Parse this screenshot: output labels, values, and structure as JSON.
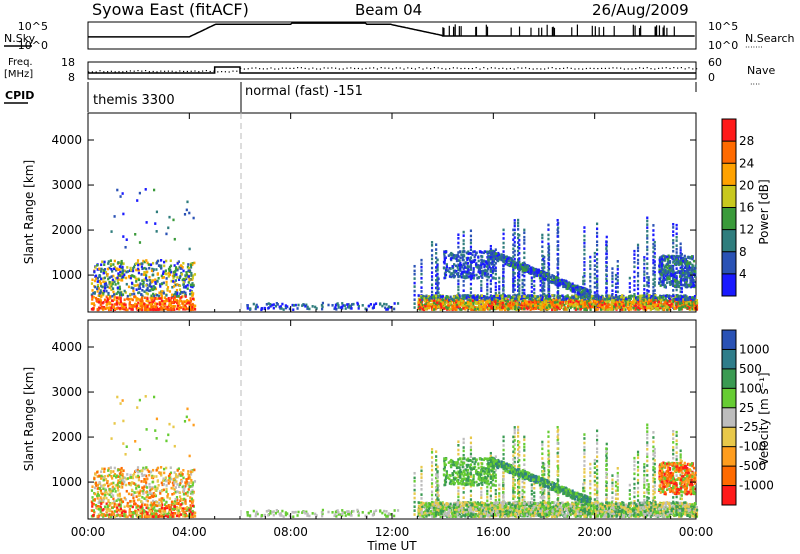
{
  "header": {
    "station": "Syowa East (fitACF)",
    "beam": "Beam 04",
    "date": "26/Aug/2009"
  },
  "top_panel_labels": {
    "nsky": "N.Sky",
    "nsearch": "N.Search",
    "nsearch_dots": "·······",
    "freq_line1": "Freq.",
    "freq_line2": "[MHz]",
    "cpid": "CPID",
    "nave": "Nave",
    "nave_dots": "····",
    "nsky_top": "10^5",
    "nsky_bottom": "10^0",
    "nsearch_top": "10^5",
    "nsearch_bottom": "10^0",
    "freq_top": "18",
    "freq_bottom": "8",
    "nave_top": "60",
    "nave_bottom": "0"
  },
  "cpid_segments": [
    {
      "start_hour": 0,
      "end_hour": 6,
      "label": "themis 3300"
    },
    {
      "start_hour": 6,
      "end_hour": 24,
      "label": "normal (fast) -151"
    }
  ],
  "colorbars": {
    "power": {
      "label": "Power [dB]",
      "ticks": [
        "4",
        "8",
        "12",
        "16",
        "20",
        "24",
        "28"
      ],
      "colors": [
        "#1a1aff",
        "#2a52b5",
        "#2f7d7d",
        "#3a9a3a",
        "#c8c81e",
        "#ffa200",
        "#ff6a00",
        "#ff1a1a"
      ]
    },
    "velocity": {
      "label": "Velocity [m s⁻¹]",
      "ticks": [
        "-1000",
        "-500",
        "-100",
        "-25",
        "25",
        "100",
        "500",
        "1000"
      ],
      "colors": [
        "#ff1a1a",
        "#ff6a00",
        "#ff9d1e",
        "#e8c84a",
        "#bdbdbd",
        "#66cc33",
        "#3a9a52",
        "#2f7d8a",
        "#2a52b5"
      ]
    }
  },
  "chart_data": [
    {
      "type": "heatmap",
      "panel": "power",
      "ylabel": "Slant Range [km]",
      "xlabel": "Time UT",
      "x_ticks": [
        "00:00",
        "04:00",
        "08:00",
        "12:00",
        "16:00",
        "20:00",
        "00:00"
      ],
      "y_ticks": [
        1000,
        2000,
        3000,
        4000
      ],
      "xlim_hours": [
        0,
        24
      ],
      "ylim_km": [
        180,
        4600
      ],
      "scatter_regions": [
        {
          "t0": 0.2,
          "t1": 4.2,
          "r0": 200,
          "r1": 1300,
          "level": "high"
        },
        {
          "t0": 12.8,
          "t1": 23.5,
          "r0": 300,
          "r1": 2300,
          "level": "mixed"
        },
        {
          "t0": 14.0,
          "t1": 24.0,
          "r0": 200,
          "r1": 500,
          "level": "high"
        }
      ]
    },
    {
      "type": "heatmap",
      "panel": "velocity",
      "ylabel": "Slant Range [km]",
      "xlabel": "Time UT",
      "x_ticks": [
        "00:00",
        "04:00",
        "08:00",
        "12:00",
        "16:00",
        "20:00",
        "00:00"
      ],
      "y_ticks": [
        1000,
        2000,
        3000,
        4000
      ],
      "xlim_hours": [
        0,
        24
      ],
      "ylim_km": [
        180,
        4600
      ]
    }
  ]
}
